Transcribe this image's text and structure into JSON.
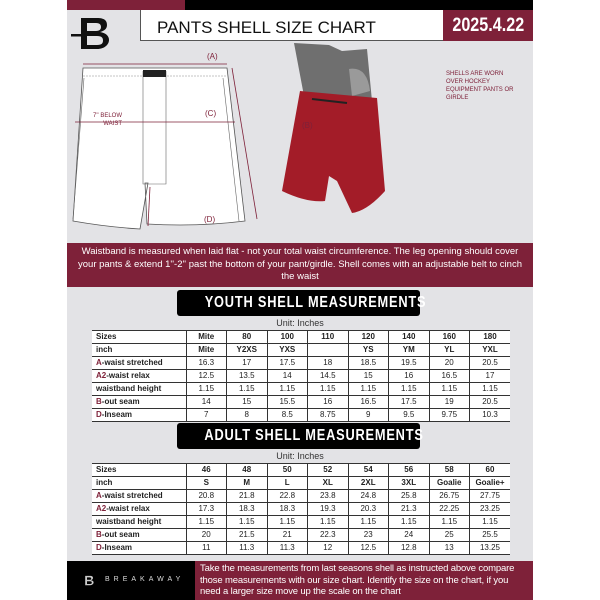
{
  "header": {
    "title": "PANTS SHELL SIZE CHART",
    "date": "2025.4.22"
  },
  "diagram": {
    "label_a": "(A)",
    "label_b": "(B)",
    "label_c": "(C)",
    "label_d": "(D)",
    "c_note": "7'' BELOW WAIST",
    "worn_note": "SHELLS ARE WORN OVER HOCKEY EQUIPMENT PANTS OR GIRDLE"
  },
  "note": "Waistband is measured when laid flat - not your total waist circumference. The leg opening should cover your pants & extend 1''-2'' past the bottom of your pant/girdle. Shell comes with an adjustable belt to cinch the waist",
  "youth": {
    "title": "YOUTH SHELL MEASUREMENTS",
    "unit": "Unit: Inches",
    "rows": [
      {
        "prefix": "",
        "label": "Sizes",
        "values": [
          "Mite",
          "80",
          "100",
          "110",
          "120",
          "140",
          "160",
          "180"
        ]
      },
      {
        "prefix": "",
        "label": "inch",
        "values": [
          "Mite",
          "Y2XS",
          "YXS",
          "",
          "YS",
          "YM",
          "YL",
          "YXL"
        ]
      },
      {
        "prefix": "A",
        "label": "-waist stretched",
        "values": [
          "16.3",
          "17",
          "17.5",
          "18",
          "18.5",
          "19.5",
          "20",
          "20.5"
        ]
      },
      {
        "prefix": "A2",
        "label": "-waist relax",
        "values": [
          "12.5",
          "13.5",
          "14",
          "14.5",
          "15",
          "16",
          "16.5",
          "17"
        ]
      },
      {
        "prefix": "",
        "label": "waistband height",
        "values": [
          "1.15",
          "1.15",
          "1.15",
          "1.15",
          "1.15",
          "1.15",
          "1.15",
          "1.15"
        ]
      },
      {
        "prefix": "B",
        "label": "-out seam",
        "values": [
          "14",
          "15",
          "15.5",
          "16",
          "16.5",
          "17.5",
          "19",
          "20.5"
        ]
      },
      {
        "prefix": "D",
        "label": "-Inseam",
        "values": [
          "7",
          "8",
          "8.5",
          "8.75",
          "9",
          "9.5",
          "9.75",
          "10.3"
        ]
      }
    ]
  },
  "adult": {
    "title": "ADULT SHELL MEASUREMENTS",
    "unit": "Unit: Inches",
    "rows": [
      {
        "prefix": "",
        "label": "Sizes",
        "values": [
          "46",
          "48",
          "50",
          "52",
          "54",
          "56",
          "58",
          "60"
        ]
      },
      {
        "prefix": "",
        "label": "inch",
        "values": [
          "S",
          "M",
          "L",
          "XL",
          "2XL",
          "3XL",
          "Goalie",
          "Goalie+"
        ]
      },
      {
        "prefix": "A",
        "label": "-waist stretched",
        "values": [
          "20.8",
          "21.8",
          "22.8",
          "23.8",
          "24.8",
          "25.8",
          "26.75",
          "27.75"
        ]
      },
      {
        "prefix": "A2",
        "label": "-waist relax",
        "values": [
          "17.3",
          "18.3",
          "18.3",
          "19.3",
          "20.3",
          "21.3",
          "22.25",
          "23.25"
        ]
      },
      {
        "prefix": "",
        "label": "waistband height",
        "values": [
          "1.15",
          "1.15",
          "1.15",
          "1.15",
          "1.15",
          "1.15",
          "1.15",
          "1.15"
        ]
      },
      {
        "prefix": "B",
        "label": "-out seam",
        "values": [
          "20",
          "21.5",
          "21",
          "22.3",
          "23",
          "24",
          "25",
          "25.5"
        ]
      },
      {
        "prefix": "D",
        "label": "-Inseam",
        "values": [
          "11",
          "11.3",
          "11.3",
          "12",
          "12.5",
          "12.8",
          "13",
          "13.25"
        ]
      }
    ]
  },
  "footer": {
    "brand": "BREAKAWAY",
    "text": "Take the measurements from last seasons shell as instructed above compare those measurements  with our size chart. Identify the size on the chart, if you need a larger size move up the scale on the chart"
  },
  "colors": {
    "accent": "#7e2139",
    "dark": "#000000",
    "background": "#e3e3e6"
  }
}
